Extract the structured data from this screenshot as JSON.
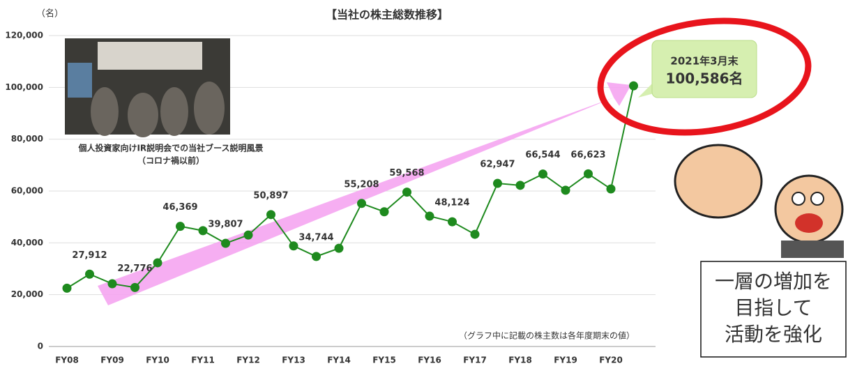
{
  "chart_data": {
    "type": "line",
    "title": "【当社の株主総数推移】",
    "y_label": "（名）",
    "categories": [
      "FY08",
      null,
      "FY09",
      null,
      "FY10",
      null,
      "FY11",
      null,
      "FY12",
      null,
      "FY13",
      null,
      "FY14",
      null,
      "FY15",
      null,
      "FY16",
      null,
      "FY17",
      null,
      "FY18",
      null,
      "FY19",
      null,
      "FY20",
      null
    ],
    "series": [
      {
        "name": "株主総数",
        "color": "#1e8a1e",
        "values": [
          22500,
          27912,
          24200,
          22776,
          32300,
          46369,
          44700,
          39807,
          43000,
          50897,
          38800,
          34744,
          37900,
          55208,
          52000,
          59568,
          50300,
          48124,
          43300,
          62947,
          62200,
          66544,
          60300,
          66623,
          60800,
          100586
        ],
        "value_labels": [
          null,
          "27,912",
          null,
          "22,776",
          null,
          "46,369",
          null,
          "39,807",
          null,
          "50,897",
          null,
          "34,744",
          null,
          "55,208",
          null,
          "59,568",
          null,
          "48,124",
          null,
          "62,947",
          null,
          "66,544",
          null,
          "66,623",
          null,
          null
        ]
      }
    ],
    "ylim": [
      0,
      120000
    ],
    "yticks": [
      0,
      {
        "value": 20000,
        "label": "20,000"
      },
      {
        "value": 40000,
        "label": "40,000"
      },
      {
        "value": 60000,
        "label": "60,000"
      },
      {
        "value": 80000,
        "label": "80,000"
      },
      {
        "value": 100000,
        "label": "100,000"
      },
      {
        "value": 120000,
        "label": "120,000"
      }
    ],
    "grid": true,
    "callout": [
      "2021年3月末",
      "100,586名"
    ],
    "photo_caption": [
      "個人投資家向けIR説明会での当社ブース説明風景",
      "（コロナ禍以前）"
    ],
    "note": "（グラフ中に記載の株主数は各年度期末の値）",
    "slogan": [
      "一層の増加を",
      "目指して",
      "活動を強化"
    ]
  }
}
